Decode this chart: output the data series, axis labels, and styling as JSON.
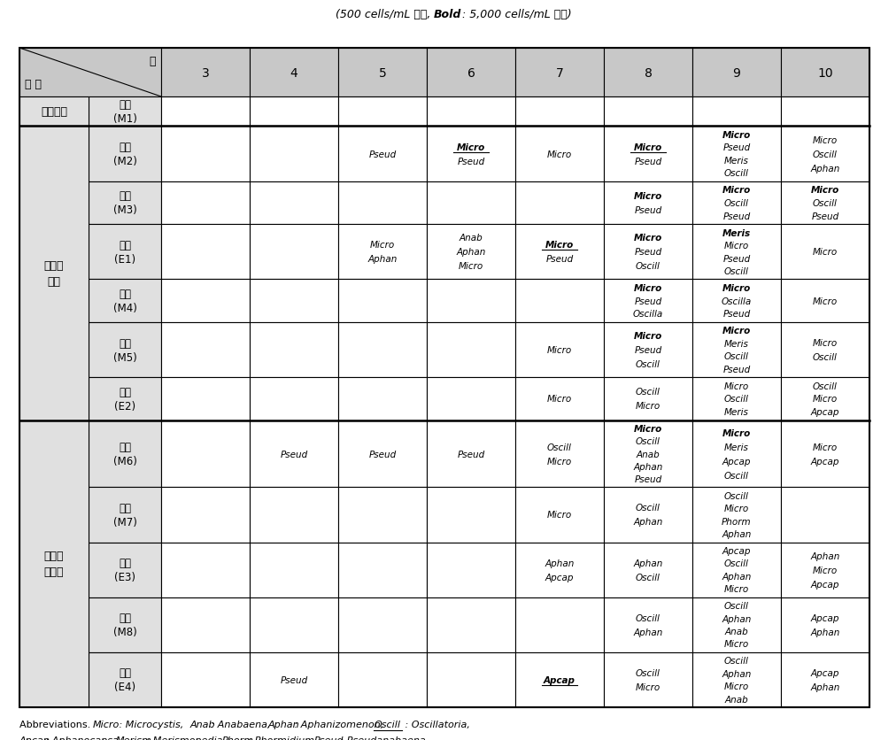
{
  "months": [
    "3",
    "4",
    "5",
    "6",
    "7",
    "8",
    "9",
    "10"
  ],
  "rows": [
    {
      "region": "금강상류",
      "site_line1": "청마",
      "site_line2": "(M1)",
      "data": [
        "",
        "",
        "",
        "",
        "",
        "",
        "",
        ""
      ]
    },
    {
      "region": "",
      "site_line1": "장계",
      "site_line2": "(M2)",
      "data": [
        "",
        "",
        "Pseud",
        "Micro\nPseud",
        "Micro",
        "Micro\nPseud",
        "Micro\nPseud\nMeris\nOscill",
        "Micro\nOscill\nAphan"
      ]
    },
    {
      "region": "",
      "site_line1": "석호",
      "site_line2": "(M3)",
      "data": [
        "",
        "",
        "",
        "",
        "",
        "Micro\nPseud",
        "Micro\nOscill\nPseud",
        "Micro\nOscill\nPseud"
      ]
    },
    {
      "region": "대청호",
      "site_line1": "춰소",
      "site_line2": "(E1)",
      "data": [
        "",
        "",
        "Micro\nAphan",
        "Anab\nAphan\nMicro",
        "Micro\nPseud",
        "Micro\nPseud\nOscill",
        "Meris\nMicro\nPseud\nOscill",
        "Micro"
      ]
    },
    {
      "region": "상류",
      "site_line1": "대정",
      "site_line2": "(M4)",
      "data": [
        "",
        "",
        "",
        "",
        "",
        "Micro\nPseud\nOscilla",
        "Micro\nOscilla\nPseud",
        "Micro"
      ]
    },
    {
      "region": "",
      "site_line1": "분저",
      "site_line2": "(M5)",
      "data": [
        "",
        "",
        "",
        "",
        "Micro",
        "Micro\nPseud\nOscill",
        "Micro\nMeris\nOscill\nPseud",
        "Micro\nOscill"
      ]
    },
    {
      "region": "",
      "site_line1": "신공",
      "site_line2": "(E2)",
      "data": [
        "",
        "",
        "",
        "",
        "Micro",
        "Oscill\nMicro",
        "Micro\nOscill\nMeris",
        "Oscill\nMicro\nApcap"
      ]
    },
    {
      "region": "",
      "site_line1": "회남",
      "site_line2": "(M6)",
      "data": [
        "",
        "Pseud",
        "Pseud",
        "Pseud",
        "Oscill\nMicro",
        "Micro\nOscill\nAnab\nAphan\nPseud",
        "Micro\nMeris\nApcap\nOscill",
        "Micro\nApcap"
      ]
    },
    {
      "region": "",
      "site_line1": "법수",
      "site_line2": "(M7)",
      "data": [
        "",
        "",
        "",
        "",
        "Micro",
        "Oscill\nAphan",
        "Oscill\nMicro\nPhorm\nAphan",
        ""
      ]
    },
    {
      "region": "대청호",
      "site_line1": "춰동",
      "site_line2": "(E3)",
      "data": [
        "",
        "",
        "",
        "",
        "Aphan\nApcap",
        "Aphan\nOscill",
        "Apcap\nOscill\nAphan\nMicro",
        "Aphan\nMicro\nApcap"
      ]
    },
    {
      "region": "중하류",
      "site_line1": "담앙",
      "site_line2": "(M8)",
      "data": [
        "",
        "",
        "",
        "",
        "",
        "Oscill\nAphan",
        "Oscill\nAphan\nAnab\nMicro",
        "Apcap\nAphan"
      ]
    },
    {
      "region": "",
      "site_line1": "문의",
      "site_line2": "(E4)",
      "data": [
        "",
        "Pseud",
        "",
        "",
        "Apcap",
        "Oscill\nMicro",
        "Oscill\nAphan\nMicro\nAnab",
        "Apcap\nAphan"
      ]
    }
  ],
  "bold_first_line": [
    [
      1,
      3
    ],
    [
      1,
      5
    ],
    [
      2,
      5
    ],
    [
      2,
      6
    ],
    [
      2,
      7
    ],
    [
      3,
      4
    ],
    [
      3,
      5
    ],
    [
      4,
      5
    ],
    [
      5,
      5
    ],
    [
      5,
      6
    ],
    [
      7,
      5
    ],
    [
      7,
      6
    ],
    [
      11,
      4
    ]
  ],
  "underline_first_line": [
    [
      1,
      3
    ],
    [
      1,
      5
    ],
    [
      3,
      4
    ],
    [
      11,
      4
    ]
  ],
  "region_groups": [
    [
      0,
      0,
      "금강상류"
    ],
    [
      1,
      6,
      "대청호\n상류"
    ],
    [
      7,
      11,
      "대청호\n중하류"
    ]
  ]
}
